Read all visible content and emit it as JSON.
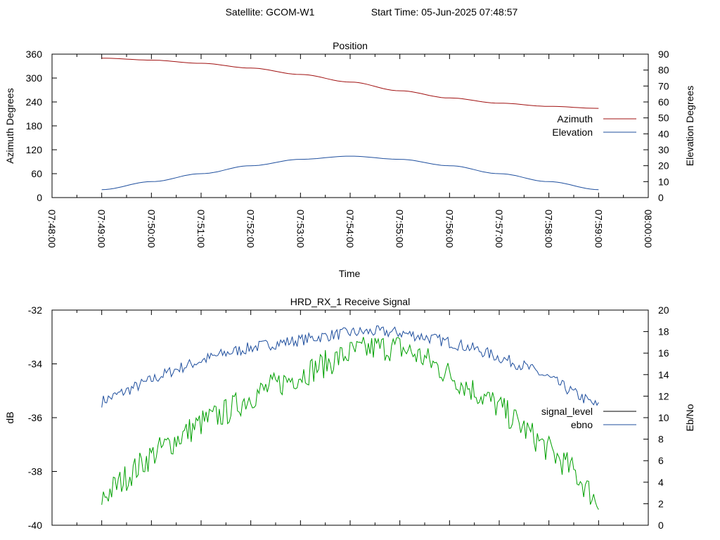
{
  "header": {
    "satellite": "Satellite: GCOM-W1",
    "start_time": "Start Time: 05-Jun-2025 07:48:57"
  },
  "chart_data": [
    {
      "type": "line",
      "title": "Position",
      "xlabel": "Time",
      "ylabel": "Azimuth Degrees",
      "y2label": "Elevation Degrees",
      "x_ticks": [
        "07:48:00",
        "07:49:00",
        "07:50:00",
        "07:51:00",
        "07:52:00",
        "07:53:00",
        "07:54:00",
        "07:55:00",
        "07:56:00",
        "07:57:00",
        "07:58:00",
        "07:59:00",
        "08:00:00"
      ],
      "xlim": [
        "07:48:00",
        "08:00:00"
      ],
      "ylim": [
        0,
        360
      ],
      "y_ticks": [
        0,
        60,
        120,
        180,
        240,
        300,
        360
      ],
      "y2lim": [
        0,
        90
      ],
      "y2_ticks": [
        0,
        10,
        20,
        30,
        40,
        50,
        60,
        70,
        80,
        90
      ],
      "legend_position": "right",
      "grid": false,
      "series": [
        {
          "name": "Azimuth",
          "axis": "y",
          "color": "#a01010",
          "x": [
            "07:49:00",
            "07:50:00",
            "07:51:00",
            "07:52:00",
            "07:53:00",
            "07:54:00",
            "07:55:00",
            "07:56:00",
            "07:57:00",
            "07:58:00",
            "07:59:00"
          ],
          "values": [
            350,
            345,
            337,
            325,
            309,
            290,
            268,
            250,
            237,
            229,
            224
          ]
        },
        {
          "name": "Elevation",
          "axis": "y2",
          "color": "#1f4f9e",
          "x": [
            "07:49:00",
            "07:50:00",
            "07:51:00",
            "07:52:00",
            "07:53:00",
            "07:54:00",
            "07:55:00",
            "07:56:00",
            "07:57:00",
            "07:58:00",
            "07:59:00"
          ],
          "values": [
            5,
            10,
            15,
            20,
            24,
            26,
            24,
            20,
            15,
            10,
            5
          ]
        }
      ]
    },
    {
      "type": "line",
      "title": "HRD_RX_1 Receive Signal",
      "ylabel": "dB",
      "y2label": "Eb/No",
      "xlim": [
        "07:48:00",
        "08:00:00"
      ],
      "ylim": [
        -40,
        -32
      ],
      "y_ticks": [
        -40,
        -38,
        -36,
        -34,
        -32
      ],
      "y2lim": [
        0,
        20
      ],
      "y2_ticks": [
        0,
        2,
        4,
        6,
        8,
        10,
        12,
        14,
        16,
        18,
        20
      ],
      "legend_position": "right",
      "grid": false,
      "series": [
        {
          "name": "signal_level",
          "axis": "y",
          "color": "#000000",
          "legend_color": "#000000",
          "x": [],
          "values": []
        },
        {
          "name": "ebno",
          "axis": "y2",
          "color": "#1f4f9e",
          "x": [
            "07:49:00",
            "07:49:30",
            "07:50:00",
            "07:50:30",
            "07:51:00",
            "07:51:30",
            "07:52:00",
            "07:52:30",
            "07:53:00",
            "07:53:30",
            "07:54:00",
            "07:54:30",
            "07:55:00",
            "07:55:30",
            "07:56:00",
            "07:56:30",
            "07:57:00",
            "07:57:30",
            "07:58:00",
            "07:58:30",
            "07:59:00"
          ],
          "values": [
            11.5,
            12.5,
            13.5,
            14.5,
            15.3,
            16.0,
            16.5,
            16.9,
            17.2,
            17.6,
            17.9,
            18.0,
            17.9,
            17.5,
            17.0,
            16.4,
            15.6,
            14.8,
            13.7,
            12.3,
            11.0
          ]
        },
        {
          "name": "",
          "axis": "y2",
          "color": "#00a000",
          "x": [
            "07:49:00",
            "07:49:30",
            "07:50:00",
            "07:50:30",
            "07:51:00",
            "07:51:30",
            "07:52:00",
            "07:52:30",
            "07:53:00",
            "07:53:30",
            "07:54:00",
            "07:54:30",
            "07:55:00",
            "07:55:30",
            "07:56:00",
            "07:56:30",
            "07:57:00",
            "07:57:30",
            "07:58:00",
            "07:58:30",
            "07:59:00"
          ],
          "values": [
            2.5,
            4.5,
            6.5,
            8.0,
            9.5,
            10.5,
            12.0,
            13.0,
            14.0,
            15.0,
            16.0,
            16.5,
            16.5,
            15.5,
            14.0,
            12.5,
            11.0,
            9.0,
            7.0,
            5.0,
            2.0
          ]
        }
      ]
    }
  ]
}
